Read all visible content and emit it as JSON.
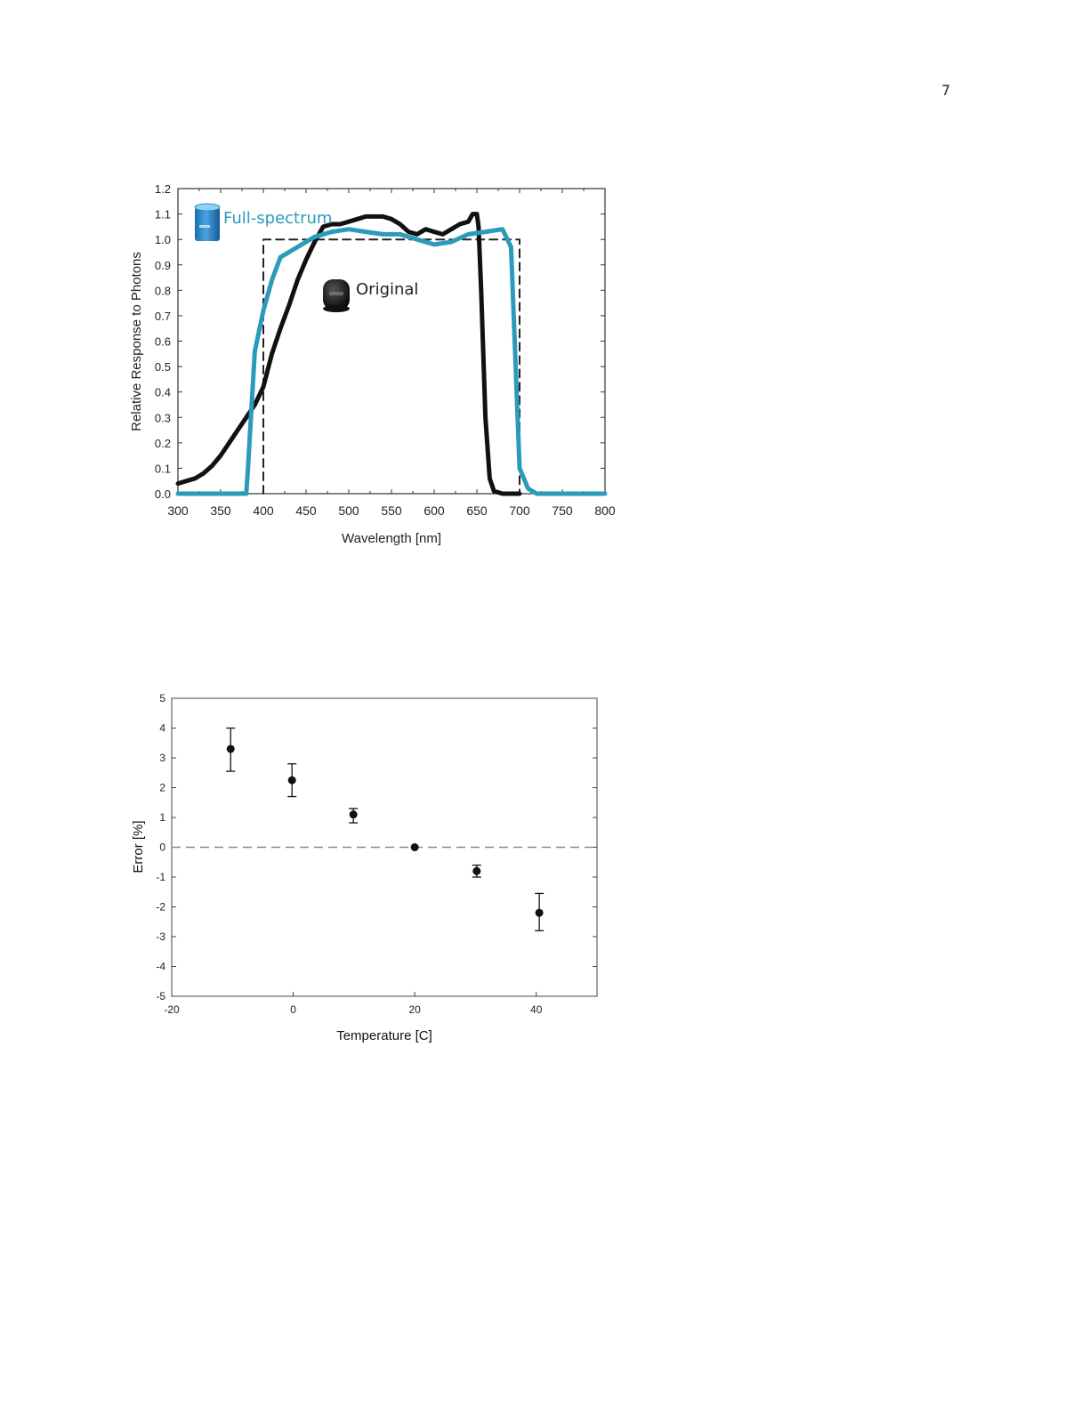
{
  "page": {
    "number": "7"
  },
  "chart_data": [
    {
      "type": "line",
      "title": "",
      "xlabel": "Wavelength [nm]",
      "ylabel": "Relative Response to Photons",
      "xlim": [
        300,
        800
      ],
      "ylim": [
        0,
        1.2
      ],
      "xticks": [
        "300",
        "350",
        "400",
        "450",
        "500",
        "550",
        "600",
        "650",
        "700",
        "750",
        "800"
      ],
      "yticks": [
        "0.0",
        "0.1",
        "0.2",
        "0.3",
        "0.4",
        "0.5",
        "0.6",
        "0.7",
        "0.8",
        "0.9",
        "1.0",
        "1.1",
        "1.2"
      ],
      "grid": false,
      "annotations": [
        {
          "text": "Full-spectrum",
          "color": "#2a9bb8",
          "icon": "full-spectrum-sensor-icon"
        },
        {
          "text": "Original",
          "color": "#222222",
          "icon": "original-sensor-icon"
        }
      ],
      "series": [
        {
          "name": "Original",
          "color": "#111111",
          "style": "solid",
          "x": [
            300,
            310,
            320,
            330,
            340,
            350,
            360,
            370,
            380,
            390,
            400,
            410,
            420,
            430,
            440,
            450,
            460,
            470,
            480,
            490,
            500,
            510,
            520,
            530,
            540,
            550,
            560,
            570,
            580,
            590,
            600,
            610,
            620,
            630,
            640,
            645,
            650,
            652,
            655,
            660,
            665,
            670,
            680,
            690,
            700
          ],
          "y": [
            0.04,
            0.05,
            0.06,
            0.08,
            0.11,
            0.15,
            0.2,
            0.25,
            0.3,
            0.35,
            0.42,
            0.55,
            0.65,
            0.74,
            0.84,
            0.92,
            0.99,
            1.05,
            1.06,
            1.06,
            1.07,
            1.08,
            1.09,
            1.09,
            1.09,
            1.08,
            1.06,
            1.03,
            1.02,
            1.04,
            1.03,
            1.02,
            1.04,
            1.06,
            1.07,
            1.1,
            1.1,
            1.05,
            0.8,
            0.3,
            0.06,
            0.01,
            0.0,
            0.0,
            0.0
          ]
        },
        {
          "name": "Full-spectrum",
          "color": "#2a9bb8",
          "style": "solid",
          "x": [
            300,
            320,
            340,
            360,
            380,
            382,
            390,
            400,
            410,
            420,
            440,
            460,
            480,
            500,
            520,
            540,
            560,
            580,
            600,
            620,
            640,
            660,
            680,
            690,
            700,
            710,
            720,
            740,
            760,
            800
          ],
          "y": [
            0.0,
            0.0,
            0.0,
            0.0,
            0.0,
            0.1,
            0.56,
            0.72,
            0.84,
            0.93,
            0.97,
            1.01,
            1.03,
            1.04,
            1.03,
            1.02,
            1.02,
            1.0,
            0.98,
            0.99,
            1.02,
            1.03,
            1.04,
            0.97,
            0.1,
            0.02,
            0.0,
            0.0,
            0.0,
            0.0
          ]
        },
        {
          "name": "",
          "color": "#222222",
          "style": "dashed",
          "x": [
            400,
            400,
            700,
            700
          ],
          "y": [
            0.0,
            1.0,
            1.0,
            0.0
          ]
        }
      ]
    },
    {
      "type": "scatter",
      "title": "",
      "xlabel": "Temperature [C]",
      "ylabel": "Error [%]",
      "xlim": [
        -20,
        50
      ],
      "ylim": [
        -5,
        5
      ],
      "xticks": [
        "-20",
        "0",
        "20",
        "40"
      ],
      "yticks": [
        "-5",
        "-4",
        "-3",
        "-2",
        "-1",
        "0",
        "1",
        "2",
        "3",
        "4",
        "5"
      ],
      "grid": false,
      "reference_line": {
        "y": 0,
        "style": "dashed",
        "color": "#888888"
      },
      "series": [
        {
          "name": "",
          "color": "#111111",
          "x": [
            -10.3,
            -0.2,
            9.9,
            20.0,
            30.2,
            40.5
          ],
          "y": [
            3.3,
            2.25,
            1.1,
            0.0,
            -0.8,
            -2.2
          ],
          "error_low": [
            2.55,
            1.7,
            0.82,
            0.0,
            -1.0,
            -2.8
          ],
          "error_high": [
            4.0,
            2.8,
            1.3,
            0.0,
            -0.6,
            -1.55
          ]
        }
      ]
    }
  ]
}
